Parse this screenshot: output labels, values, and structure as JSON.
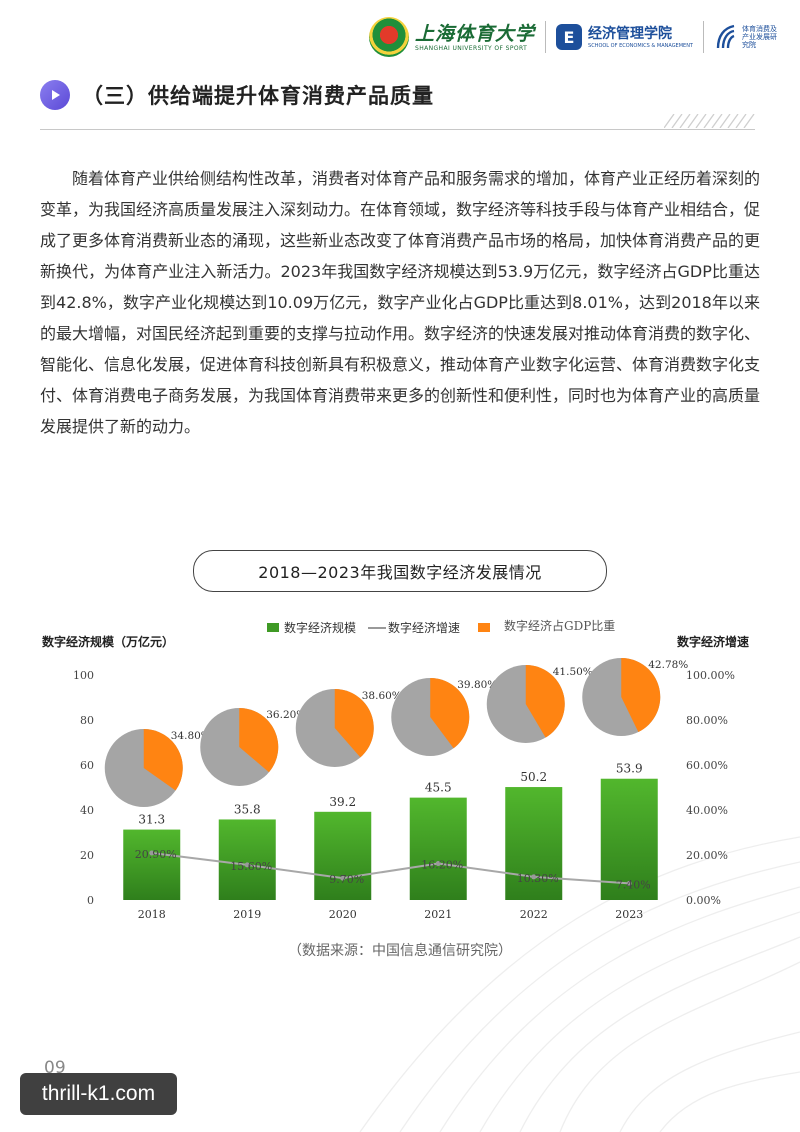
{
  "header": {
    "university_name": "上海体育大学",
    "university_en": "SHANGHAI UNIVERSITY OF SPORT",
    "school_name": "经济管理学院",
    "school_en": "SCHOOL OF ECONOMICS & MANAGEMENT",
    "institute_name": "体育消费及产业发展研究院"
  },
  "section": {
    "title": "（三）供给端提升体育消费产品质量"
  },
  "body": {
    "paragraph": "随着体育产业供给侧结构性改革，消费者对体育产品和服务需求的增加，体育产业正经历着深刻的变革，为我国经济高质量发展注入深刻动力。在体育领域，数字经济等科技手段与体育产业相结合，促成了更多体育消费新业态的涌现，这些新业态改变了体育消费产品市场的格局，加快体育消费产品的更新换代，为体育产业注入新活力。2023年我国数字经济规模达到53.9万亿元，数字经济占GDP比重达到42.8%，数字产业化规模达到10.09万亿元，数字产业化占GDP比重达到8.01%，达到2018年以来的最大增幅，对国民经济起到重要的支撑与拉动作用。数字经济的快速发展对推动体育消费的数字化、智能化、信息化发展，促进体育科技创新具有积极意义，推动体育产业数字化运营、体育消费数字化支付、体育消费电子商务发展，为我国体育消费带来更多的创新性和便利性，同时也为体育产业的高质量发展提供了新的动力。"
  },
  "chart_data": {
    "type": "bar",
    "title": "2018—2023年我国数字经济发展情况",
    "categories": [
      "2018",
      "2019",
      "2020",
      "2021",
      "2022",
      "2023"
    ],
    "ylabel_left": "数字经济规模（万亿元）",
    "ylabel_right": "数字经济增速",
    "ylim_left": [
      0,
      100
    ],
    "ylim_right": [
      0,
      100
    ],
    "yticks_left": [
      "0",
      "20",
      "40",
      "60",
      "80",
      "100"
    ],
    "yticks_right": [
      "0.00%",
      "20.00%",
      "40.00%",
      "60.00%",
      "80.00%",
      "100.00%"
    ],
    "legend": [
      "数字经济规模",
      "数字经济增速",
      "数字经济占GDP比重"
    ],
    "series": [
      {
        "name": "数字经济规模",
        "type": "bar",
        "values": [
          31.3,
          35.8,
          39.2,
          45.5,
          50.2,
          53.9
        ],
        "labels": [
          "31.3",
          "35.8",
          "39.2",
          "45.5",
          "50.2",
          "53.9"
        ],
        "color": "#3f9a25"
      },
      {
        "name": "数字经济增速",
        "type": "line",
        "values": [
          20.9,
          15.6,
          9.7,
          16.2,
          10.3,
          7.4
        ],
        "labels": [
          "20.90%",
          "15.60%",
          "9.70%",
          "16.20%",
          "10.30%",
          "7.40%"
        ],
        "color": "#a8a8a8"
      },
      {
        "name": "数字经济占GDP比重",
        "type": "pie",
        "values": [
          34.8,
          36.2,
          38.6,
          39.8,
          41.5,
          42.78
        ],
        "labels": [
          "34.80%",
          "36.20%",
          "38.60%",
          "39.80%",
          "41.50%",
          "42.78%"
        ],
        "color": "#ff8412",
        "rest_color": "#a5a5a5"
      }
    ],
    "source": "（数据来源：中国信息通信研究院）"
  },
  "footer": {
    "page_number": "09",
    "watermark": "thrill-k1.com"
  }
}
